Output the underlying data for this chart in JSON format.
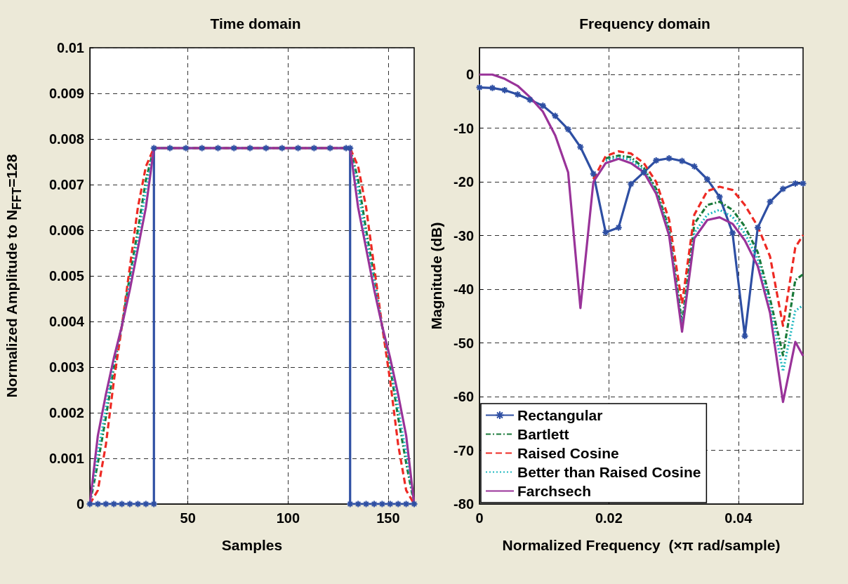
{
  "chart_data": [
    {
      "type": "line",
      "title": "Time domain",
      "xlabel": "Samples",
      "ylabel": "Normalized Amplitude to N$_{FFT}$=128",
      "x": [
        1,
        5,
        9,
        13,
        17,
        21,
        25,
        29,
        33,
        131,
        135,
        139,
        143,
        147,
        151,
        155,
        159,
        163
      ],
      "series": [
        {
          "color": "#2e4fa3",
          "marker": "cross",
          "line_style": "solid",
          "x": [
            1,
            5,
            9,
            13,
            17,
            21,
            25,
            29,
            33,
            33,
            41,
            49,
            57,
            65,
            73,
            81,
            89,
            97,
            105,
            113,
            121,
            129,
            131,
            131,
            135,
            139,
            143,
            147,
            151,
            155,
            159,
            163
          ],
          "values": [
            0,
            0,
            0,
            0,
            0,
            0,
            0,
            0,
            0,
            0.0078,
            0.0078,
            0.0078,
            0.0078,
            0.0078,
            0.0078,
            0.0078,
            0.0078,
            0.0078,
            0.0078,
            0.0078,
            0.0078,
            0.0078,
            0.0078,
            0,
            0,
            0,
            0,
            0,
            0,
            0,
            0,
            0
          ]
        },
        {
          "color": "#1a7a3a",
          "marker": "none",
          "line_style": "dashdot",
          "values": [
            0,
            0.0009,
            0.0019,
            0.003,
            0.0039,
            0.005,
            0.006,
            0.0071,
            0.0078,
            0.0078,
            0.0071,
            0.006,
            0.005,
            0.0039,
            0.003,
            0.0019,
            0.0009,
            0
          ]
        },
        {
          "color": "#ee2a24",
          "marker": "none",
          "line_style": "dashed",
          "values": [
            0,
            0.0003,
            0.0013,
            0.0027,
            0.0039,
            0.0052,
            0.0065,
            0.0074,
            0.0078,
            0.0078,
            0.0074,
            0.0065,
            0.0052,
            0.0039,
            0.0027,
            0.0013,
            0.0003,
            0
          ]
        },
        {
          "color": "#1fb8c0",
          "marker": "none",
          "line_style": "dotted",
          "values": [
            0,
            0.0011,
            0.0021,
            0.0031,
            0.0039,
            0.0049,
            0.0058,
            0.0069,
            0.0078,
            0.0078,
            0.0069,
            0.0058,
            0.0049,
            0.0039,
            0.0031,
            0.0021,
            0.0011,
            0
          ]
        },
        {
          "color": "#993399",
          "marker": "none",
          "line_style": "solid",
          "values": [
            0,
            0.0015,
            0.0024,
            0.0032,
            0.0039,
            0.0047,
            0.0056,
            0.0065,
            0.0078,
            0.0078,
            0.0065,
            0.0056,
            0.0047,
            0.0039,
            0.0032,
            0.0024,
            0.0015,
            0
          ]
        }
      ],
      "xlim": [
        1,
        163
      ],
      "xticks": [
        50,
        100,
        150
      ],
      "ylim": [
        0,
        0.01
      ],
      "yticks": [
        0,
        0.001,
        0.002,
        0.003,
        0.004,
        0.005,
        0.006,
        0.007,
        0.008,
        0.009,
        0.01
      ],
      "grid": true,
      "legend": false
    },
    {
      "type": "line",
      "title": "Frequency domain",
      "xlabel": "Normalized Frequency  (×π rad/sample)",
      "ylabel": "Magnitude (dB)",
      "x": [
        0,
        0.002,
        0.0039,
        0.0059,
        0.0078,
        0.0098,
        0.0117,
        0.0137,
        0.0156,
        0.0176,
        0.0195,
        0.0215,
        0.0234,
        0.0254,
        0.0273,
        0.0293,
        0.0313,
        0.0332,
        0.0352,
        0.0371,
        0.0391,
        0.041,
        0.043,
        0.0449,
        0.0469,
        0.0488,
        0.05
      ],
      "series": [
        {
          "name": "Rectangular",
          "color": "#2e4fa3",
          "marker": "cross",
          "line_style": "solid",
          "values": [
            -2.4,
            -2.5,
            -2.9,
            -3.7,
            -4.7,
            -5.8,
            -7.7,
            -10.2,
            -13.5,
            -18.5,
            -29.4,
            -28.5,
            -20.4,
            -18.2,
            -16.0,
            -15.6,
            -16.1,
            -17.1,
            -19.5,
            -22.8,
            -29.5,
            -48.7,
            -28.5,
            -23.7,
            -21.3,
            -20.3,
            -20.3
          ]
        },
        {
          "name": "Bartlett",
          "color": "#1a7a3a",
          "marker": "none",
          "line_style": "dashdot",
          "values": [
            null,
            null,
            null,
            null,
            null,
            null,
            null,
            null,
            null,
            null,
            -15.6,
            -15.1,
            -15.4,
            -17.4,
            -21.3,
            -28.7,
            -46.2,
            -27.8,
            -24.3,
            -23.7,
            -25.2,
            -28.3,
            -33.1,
            -41.8,
            -52.3,
            -38.3,
            -37.2
          ]
        },
        {
          "name": "Raised Cosine",
          "color": "#ee2a24",
          "marker": "none",
          "line_style": "dashed",
          "values": [
            null,
            null,
            null,
            null,
            null,
            null,
            null,
            null,
            null,
            -19.5,
            -15.2,
            -14.3,
            -14.7,
            -16.5,
            -20.0,
            -27.0,
            -42.7,
            -26.1,
            -21.7,
            -20.9,
            -21.5,
            -24.3,
            -28.3,
            -33.9,
            -46.8,
            -32.2,
            -29.9
          ]
        },
        {
          "name": "Better than Raised Cosine",
          "color": "#1fb8c0",
          "marker": "none",
          "line_style": "dotted",
          "values": [
            null,
            null,
            null,
            null,
            null,
            null,
            null,
            null,
            null,
            null,
            -16.0,
            -15.4,
            -15.9,
            -17.8,
            -21.8,
            -29.2,
            -47.0,
            -29.5,
            -26.1,
            -25.2,
            -26.5,
            -29.6,
            -34.4,
            -43.1,
            -55.3,
            -44.0,
            -43.0
          ]
        },
        {
          "name": "Farchsech",
          "color": "#993399",
          "marker": "none",
          "line_style": "solid",
          "values": [
            0,
            0,
            -0.8,
            -2.1,
            -4.2,
            -6.9,
            -11.3,
            -18.2,
            -43.5,
            -20.0,
            -16.5,
            -15.7,
            -16.5,
            -18.2,
            -22.2,
            -30.0,
            -47.9,
            -30.5,
            -27.1,
            -26.6,
            -27.8,
            -30.9,
            -35.7,
            -44.4,
            -61,
            -49.8,
            -52.4
          ]
        }
      ],
      "xlim": [
        0,
        0.05
      ],
      "xticks": [
        0,
        0.02,
        0.04
      ],
      "ylim": [
        -80,
        5
      ],
      "yticks": [
        -80,
        -70,
        -60,
        -50,
        -40,
        -30,
        -20,
        -10,
        0
      ],
      "grid": true,
      "legend": "bottom left"
    }
  ]
}
